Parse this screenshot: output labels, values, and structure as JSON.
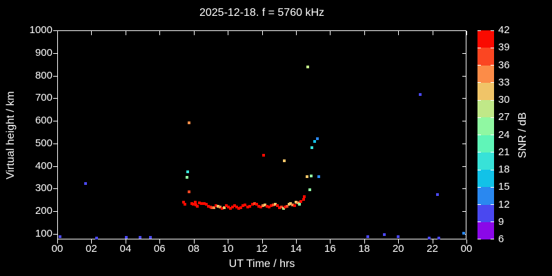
{
  "title": "2025-12-18. f = 5760 kHz",
  "x_axis": {
    "label": "UT Time / hrs",
    "tick_labels": [
      "00",
      "02",
      "04",
      "06",
      "08",
      "10",
      "12",
      "14",
      "16",
      "18",
      "20",
      "22",
      "00"
    ],
    "tick_values": [
      0,
      2,
      4,
      6,
      8,
      10,
      12,
      14,
      16,
      18,
      20,
      22,
      24
    ],
    "min": 0,
    "max": 24
  },
  "y_axis": {
    "label": "Virtual height / km",
    "tick_labels": [
      "100",
      "200",
      "300",
      "400",
      "500",
      "600",
      "700",
      "800",
      "900",
      "1000"
    ],
    "tick_values": [
      100,
      200,
      300,
      400,
      500,
      600,
      700,
      800,
      900,
      1000
    ],
    "min": 75,
    "max": 1000
  },
  "colorbar": {
    "label": "SNR / dB",
    "min": 6,
    "max": 42,
    "step": 3,
    "tick_labels": [
      "6",
      "9",
      "12",
      "15",
      "18",
      "21",
      "24",
      "27",
      "30",
      "33",
      "36",
      "39",
      "42"
    ],
    "segment_colors_low_to_high": [
      "#8A08E8",
      "#4A48F0",
      "#2A88F0",
      "#12C2E8",
      "#38E2D8",
      "#60F5B8",
      "#90F8A2",
      "#C0E888",
      "#F0C468",
      "#FC8C48",
      "#FB4622",
      "#FA0A00"
    ]
  },
  "chart_data": {
    "type": "scatter",
    "title": "2025-12-18. f = 5760 kHz",
    "xlabel": "UT Time / hrs",
    "ylabel": "Virtual height / km",
    "color_label": "SNR / dB",
    "xlim": [
      0,
      24
    ],
    "ylim": [
      75,
      1000
    ],
    "snr_lim": [
      6,
      42
    ],
    "grid": false,
    "legend_position": "right-colorbar",
    "points_t_km_db": [
      [
        0.15,
        88,
        10
      ],
      [
        1.64,
        323,
        10
      ],
      [
        2.3,
        80,
        10
      ],
      [
        4.05,
        83,
        10
      ],
      [
        4.85,
        83,
        10
      ],
      [
        5.45,
        83,
        10
      ],
      [
        18.2,
        86,
        10
      ],
      [
        19.2,
        95,
        10
      ],
      [
        20.0,
        86,
        10
      ],
      [
        21.8,
        82,
        10
      ],
      [
        22.4,
        80,
        10
      ],
      [
        23.85,
        101,
        13
      ],
      [
        21.3,
        715,
        10
      ],
      [
        22.3,
        272,
        10
      ],
      [
        7.75,
        590,
        34
      ],
      [
        7.65,
        374,
        19
      ],
      [
        7.6,
        349,
        25
      ],
      [
        7.75,
        287,
        37
      ],
      [
        12.1,
        448,
        40
      ],
      [
        13.3,
        424,
        31
      ],
      [
        14.7,
        839,
        28
      ],
      [
        15.25,
        522,
        13
      ],
      [
        15.1,
        510,
        16
      ],
      [
        14.95,
        481,
        19
      ],
      [
        14.65,
        352,
        31
      ],
      [
        14.88,
        355,
        25
      ],
      [
        15.35,
        352,
        13
      ],
      [
        14.8,
        296,
        25
      ],
      [
        14.5,
        265,
        40
      ],
      [
        7.41,
        241,
        40
      ],
      [
        7.49,
        231,
        40
      ],
      [
        7.9,
        235,
        40
      ],
      [
        7.98,
        231,
        40
      ],
      [
        8.1,
        241,
        40
      ],
      [
        8.14,
        228,
        40
      ],
      [
        8.22,
        222,
        40
      ],
      [
        8.34,
        238,
        40
      ],
      [
        8.46,
        235,
        40
      ],
      [
        8.63,
        235,
        40
      ],
      [
        8.75,
        231,
        40
      ],
      [
        8.87,
        222,
        40
      ],
      [
        8.99,
        219,
        40
      ],
      [
        9.07,
        216,
        37
      ],
      [
        9.19,
        216,
        34
      ],
      [
        9.31,
        225,
        40
      ],
      [
        9.43,
        222,
        31
      ],
      [
        9.56,
        219,
        34
      ],
      [
        9.68,
        213,
        40
      ],
      [
        9.8,
        216,
        31
      ],
      [
        9.92,
        225,
        40
      ],
      [
        10.04,
        219,
        40
      ],
      [
        10.16,
        213,
        40
      ],
      [
        10.28,
        219,
        40
      ],
      [
        10.4,
        225,
        40
      ],
      [
        10.53,
        219,
        40
      ],
      [
        10.65,
        213,
        40
      ],
      [
        10.77,
        216,
        40
      ],
      [
        10.89,
        225,
        40
      ],
      [
        11.01,
        228,
        40
      ],
      [
        11.17,
        219,
        40
      ],
      [
        11.29,
        222,
        40
      ],
      [
        11.45,
        231,
        40
      ],
      [
        11.58,
        235,
        37
      ],
      [
        11.7,
        231,
        40
      ],
      [
        11.82,
        222,
        40
      ],
      [
        11.94,
        219,
        40
      ],
      [
        12.06,
        225,
        34
      ],
      [
        12.18,
        228,
        31
      ],
      [
        12.3,
        222,
        40
      ],
      [
        12.42,
        219,
        40
      ],
      [
        12.55,
        225,
        40
      ],
      [
        12.67,
        228,
        37
      ],
      [
        12.79,
        231,
        31
      ],
      [
        12.91,
        225,
        40
      ],
      [
        13.03,
        216,
        40
      ],
      [
        13.15,
        219,
        37
      ],
      [
        13.27,
        213,
        28
      ],
      [
        13.35,
        219,
        40
      ],
      [
        13.48,
        222,
        37
      ],
      [
        13.6,
        231,
        31
      ],
      [
        13.68,
        235,
        31
      ],
      [
        13.8,
        228,
        34
      ],
      [
        13.92,
        225,
        40
      ],
      [
        14.0,
        241,
        31
      ],
      [
        14.12,
        238,
        34
      ],
      [
        14.2,
        231,
        25
      ],
      [
        14.28,
        244,
        40
      ],
      [
        14.45,
        253,
        40
      ]
    ]
  }
}
